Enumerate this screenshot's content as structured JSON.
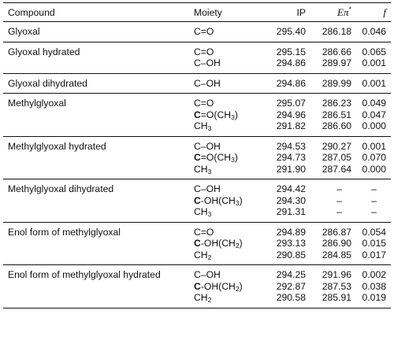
{
  "headers": {
    "compound": "Compound",
    "moiety": "Moiety",
    "ip": "IP",
    "epi_symbol": "Eπ",
    "epi_star": "*",
    "f": "f"
  },
  "groups": [
    {
      "compound": "Glyoxal",
      "rows": [
        {
          "moiety": {
            "pre": "",
            "bold": "",
            "post": "C=O",
            "sub": "",
            "tail": ""
          },
          "ip": "295.40",
          "epi": "286.18",
          "f": "0.046"
        }
      ]
    },
    {
      "compound": "Glyoxal hydrated",
      "rows": [
        {
          "moiety": {
            "pre": "",
            "bold": "",
            "post": "C=O",
            "sub": "",
            "tail": ""
          },
          "ip": "295.15",
          "epi": "286.66",
          "f": "0.065"
        },
        {
          "moiety": {
            "pre": "",
            "bold": "",
            "post": "C–OH",
            "sub": "",
            "tail": ""
          },
          "ip": "294.86",
          "epi": "289.97",
          "f": "0.001"
        }
      ]
    },
    {
      "compound": "Glyoxal dihydrated",
      "rows": [
        {
          "moiety": {
            "pre": "",
            "bold": "",
            "post": "C–OH",
            "sub": "",
            "tail": ""
          },
          "ip": "294.86",
          "epi": "289.99",
          "f": "0.001"
        }
      ]
    },
    {
      "compound": "Methylglyoxal",
      "rows": [
        {
          "moiety": {
            "pre": "",
            "bold": "",
            "post": "C=O",
            "sub": "",
            "tail": ""
          },
          "ip": "295.07",
          "epi": "286.23",
          "f": "0.049"
        },
        {
          "moiety": {
            "pre": "",
            "bold": "C",
            "post": "=O(CH",
            "sub": "3",
            "tail": ")"
          },
          "ip": "294.96",
          "epi": "286.51",
          "f": "0.047"
        },
        {
          "moiety": {
            "pre": "",
            "bold": "",
            "post": "CH",
            "sub": "3",
            "tail": ""
          },
          "ip": "291.82",
          "epi": "286.60",
          "f": "0.000"
        }
      ]
    },
    {
      "compound": "Methylglyoxal hydrated",
      "rows": [
        {
          "moiety": {
            "pre": "",
            "bold": "",
            "post": "C–OH",
            "sub": "",
            "tail": ""
          },
          "ip": "294.53",
          "epi": "290.27",
          "f": "0.001"
        },
        {
          "moiety": {
            "pre": "",
            "bold": "C",
            "post": "=O(CH",
            "sub": "3",
            "tail": ")"
          },
          "ip": "294.73",
          "epi": "287.05",
          "f": "0.070"
        },
        {
          "moiety": {
            "pre": "",
            "bold": "",
            "post": "CH",
            "sub": "3",
            "tail": ""
          },
          "ip": "291.90",
          "epi": "287.64",
          "f": "0.000"
        }
      ]
    },
    {
      "compound": "Methylglyoxal dihydrated",
      "rows": [
        {
          "moiety": {
            "pre": "",
            "bold": "",
            "post": "C–OH",
            "sub": "",
            "tail": ""
          },
          "ip": "294.42",
          "epi": "–",
          "f": "–"
        },
        {
          "moiety": {
            "pre": "",
            "bold": "C",
            "post": "-OH(CH",
            "sub": "3",
            "tail": ")"
          },
          "ip": "294.30",
          "epi": "–",
          "f": "–"
        },
        {
          "moiety": {
            "pre": "",
            "bold": "",
            "post": "CH",
            "sub": "3",
            "tail": ""
          },
          "ip": "291.31",
          "epi": "–",
          "f": "–"
        }
      ]
    },
    {
      "compound": "Enol form of methylglyoxal",
      "rows": [
        {
          "moiety": {
            "pre": "",
            "bold": "",
            "post": "C=O",
            "sub": "",
            "tail": ""
          },
          "ip": "294.89",
          "epi": "286.87",
          "f": "0.054"
        },
        {
          "moiety": {
            "pre": "",
            "bold": "C",
            "post": "-OH(CH",
            "sub": "2",
            "tail": ")"
          },
          "ip": "293.13",
          "epi": "286.90",
          "f": "0.015"
        },
        {
          "moiety": {
            "pre": "",
            "bold": "",
            "post": "CH",
            "sub": "2",
            "tail": ""
          },
          "ip": "290.85",
          "epi": "284.85",
          "f": "0.017"
        }
      ]
    },
    {
      "compound": "Enol form of methylglyoxal hydrated",
      "rows": [
        {
          "moiety": {
            "pre": "",
            "bold": "",
            "post": "C–OH",
            "sub": "",
            "tail": ""
          },
          "ip": "294.25",
          "epi": "291.96",
          "f": "0.002"
        },
        {
          "moiety": {
            "pre": "",
            "bold": "C",
            "post": "-OH(CH",
            "sub": "2",
            "tail": ")"
          },
          "ip": "292.87",
          "epi": "287.53",
          "f": "0.038"
        },
        {
          "moiety": {
            "pre": "",
            "bold": "",
            "post": "CH",
            "sub": "2",
            "tail": ""
          },
          "ip": "290.58",
          "epi": "285.91",
          "f": "0.019"
        }
      ]
    }
  ]
}
